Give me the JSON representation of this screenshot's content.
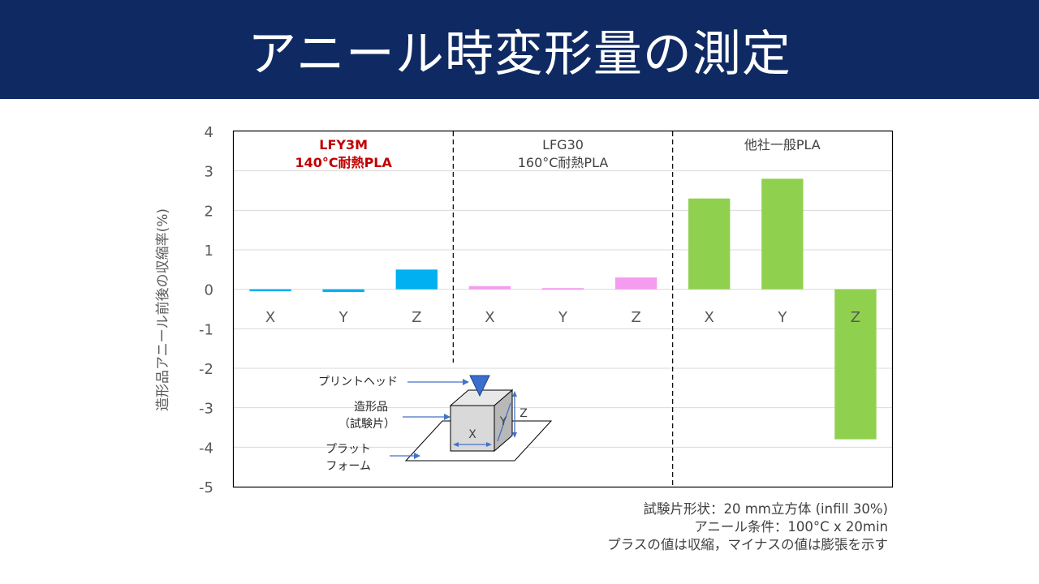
{
  "title": "アニール時変形量の測定",
  "chart_data": {
    "type": "bar",
    "ylabel": "造形品アニール前後の収縮率(%)",
    "ylim": [
      -5,
      4
    ],
    "yticks": [
      "4",
      "3",
      "2",
      "1",
      "0",
      "-1",
      "-2",
      "-3",
      "-4",
      "-5"
    ],
    "grid": true,
    "groups": [
      {
        "name_line1": "LFY3M",
        "name_line2": "140°C耐熱PLA",
        "label_color": "#c00000",
        "bar_color": "#00b0f0",
        "categories": [
          "X",
          "Y",
          "Z"
        ],
        "values": [
          -0.05,
          -0.07,
          0.5
        ]
      },
      {
        "name_line1": "LFG30",
        "name_line2": "160°C耐熱PLA",
        "label_color": "#404040",
        "bar_color": "#f59cf0",
        "categories": [
          "X",
          "Y",
          "Z"
        ],
        "values": [
          0.08,
          0.03,
          0.3
        ]
      },
      {
        "name_line1": "他社一般PLA",
        "name_line2": "",
        "label_color": "#404040",
        "bar_color": "#8fd14f",
        "categories": [
          "X",
          "Y",
          "Z"
        ],
        "values": [
          2.3,
          2.8,
          -3.8
        ]
      }
    ]
  },
  "diagram": {
    "print_head_label": "プリントヘッド",
    "specimen_label_1": "造形品",
    "specimen_label_2": "（試験片）",
    "platform_label_1": "プラット",
    "platform_label_2": "フォーム",
    "axis_x": "X",
    "axis_y": "Y",
    "axis_z": "Z"
  },
  "notes": {
    "line1": "試験片形状：20 mm立方体 (infill 30%)",
    "line2": "アニール条件：100°C x 20min",
    "line3": "プラスの値は収縮，マイナスの値は膨張を示す"
  }
}
